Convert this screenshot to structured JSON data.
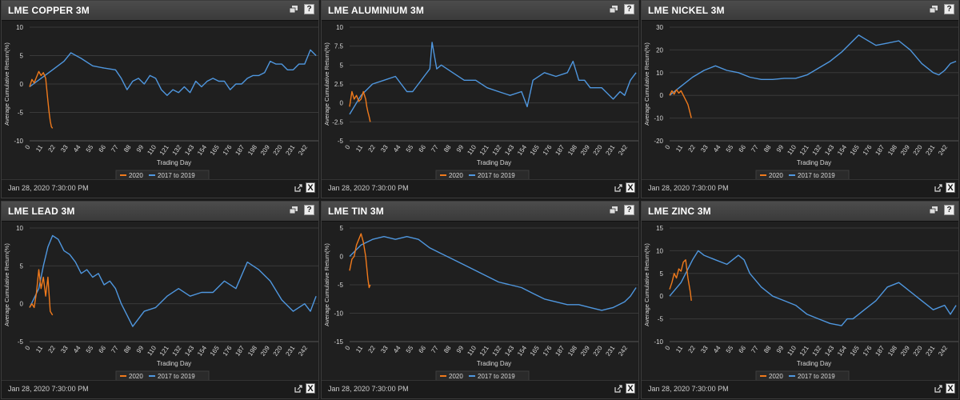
{
  "timestamp": "Jan 28, 2020 7:30:00 PM",
  "help_label": "?",
  "excel_label": "X",
  "colors": {
    "series2020": "#f07a1c",
    "series2017": "#4f97df",
    "grid": "#3a3a3a",
    "text": "#d8d8d8"
  },
  "chart_data": [
    {
      "type": "line",
      "title": "LME COPPER 3M",
      "xlabel": "Trading Day",
      "ylabel": "Average Cumulative Return(%)",
      "ylim": [
        -10,
        10
      ],
      "yticks": [
        -10,
        -5,
        0,
        5,
        10
      ],
      "xticks": [
        0,
        11,
        22,
        33,
        44,
        55,
        66,
        77,
        88,
        99,
        110,
        121,
        132,
        143,
        154,
        165,
        176,
        187,
        198,
        209,
        220,
        231,
        242
      ],
      "series": [
        {
          "name": "2020",
          "x": [
            0,
            2,
            4,
            6,
            8,
            10,
            12,
            14,
            15,
            16,
            17,
            18,
            19,
            20
          ],
          "y": [
            -0.5,
            0.8,
            0.2,
            1.2,
            2.2,
            1.5,
            2.0,
            1.0,
            -1.0,
            -3.0,
            -5.0,
            -6.5,
            -7.5,
            -7.8
          ]
        },
        {
          "name": "2017 to 2019",
          "x": [
            0,
            10,
            20,
            30,
            36,
            45,
            55,
            65,
            75,
            80,
            85,
            90,
            95,
            100,
            105,
            110,
            115,
            120,
            125,
            130,
            135,
            140,
            145,
            150,
            155,
            160,
            165,
            170,
            175,
            180,
            185,
            190,
            195,
            200,
            205,
            210,
            215,
            220,
            225,
            230,
            235,
            240,
            245,
            250
          ],
          "y": [
            -0.5,
            1.0,
            2.5,
            4.0,
            5.5,
            4.5,
            3.2,
            2.8,
            2.5,
            1.0,
            -1.0,
            0.5,
            1.0,
            0.0,
            1.5,
            1.0,
            -1.0,
            -2.0,
            -1.0,
            -1.5,
            -0.5,
            -1.5,
            0.5,
            -0.5,
            0.5,
            1.0,
            0.5,
            0.5,
            -1.0,
            0.0,
            0.0,
            1.0,
            1.5,
            1.5,
            2.0,
            4.0,
            3.5,
            3.5,
            2.5,
            2.5,
            3.5,
            3.5,
            6.0,
            5.0
          ]
        }
      ]
    },
    {
      "type": "line",
      "title": "LME ALUMINIUM 3M",
      "xlabel": "Trading Day",
      "ylabel": "Average Cumulative Return(%)",
      "ylim": [
        -5,
        10
      ],
      "yticks": [
        -5,
        -2.5,
        0,
        2.5,
        5,
        7.5,
        10
      ],
      "xticks": [
        0,
        11,
        22,
        33,
        44,
        55,
        66,
        77,
        88,
        99,
        110,
        121,
        132,
        143,
        154,
        165,
        176,
        187,
        198,
        209,
        220,
        231,
        242
      ],
      "series": [
        {
          "name": "2020",
          "x": [
            0,
            2,
            4,
            6,
            8,
            10,
            12,
            14,
            15,
            16,
            17,
            18
          ],
          "y": [
            -0.5,
            1.5,
            0.5,
            1.0,
            0.2,
            0.5,
            1.5,
            0.5,
            -0.5,
            -1.2,
            -1.8,
            -2.5
          ]
        },
        {
          "name": "2017 to 2019",
          "x": [
            0,
            10,
            20,
            30,
            40,
            50,
            55,
            60,
            65,
            70,
            72,
            76,
            80,
            90,
            100,
            110,
            120,
            130,
            140,
            150,
            155,
            160,
            170,
            180,
            190,
            195,
            200,
            205,
            210,
            220,
            230,
            236,
            240,
            245,
            250
          ],
          "y": [
            -1.5,
            1.0,
            2.5,
            3.0,
            3.5,
            1.5,
            1.5,
            2.5,
            3.5,
            4.5,
            8.0,
            4.5,
            5.0,
            4.0,
            3.0,
            3.0,
            2.0,
            1.5,
            1.0,
            1.5,
            -0.5,
            3.0,
            4.0,
            3.5,
            4.0,
            5.5,
            3.0,
            3.0,
            2.0,
            2.0,
            0.5,
            1.5,
            1.0,
            3.0,
            4.0
          ]
        }
      ]
    },
    {
      "type": "line",
      "title": "LME NICKEL 3M",
      "xlabel": "Trading Day",
      "ylabel": "Average Cumulative Return(%)",
      "ylim": [
        -20,
        30
      ],
      "yticks": [
        -20,
        -10,
        0,
        10,
        20,
        30
      ],
      "xticks": [
        0,
        11,
        22,
        33,
        44,
        55,
        66,
        77,
        88,
        99,
        110,
        121,
        132,
        143,
        154,
        165,
        176,
        187,
        198,
        209,
        220,
        231,
        242
      ],
      "series": [
        {
          "name": "2020",
          "x": [
            0,
            2,
            4,
            6,
            8,
            10,
            12,
            14,
            16,
            18,
            19
          ],
          "y": [
            0.0,
            2.0,
            0.5,
            2.5,
            1.0,
            2.0,
            0.0,
            -2.0,
            -4.0,
            -8.0,
            -10.0
          ]
        },
        {
          "name": "2017 to 2019",
          "x": [
            0,
            10,
            20,
            30,
            40,
            50,
            60,
            70,
            80,
            90,
            100,
            110,
            120,
            130,
            140,
            150,
            160,
            165,
            170,
            180,
            190,
            200,
            210,
            220,
            225,
            230,
            235,
            240,
            245,
            250
          ],
          "y": [
            0.0,
            4.0,
            8.0,
            11.0,
            13.0,
            11.0,
            10.0,
            8.0,
            7.0,
            7.0,
            7.5,
            7.5,
            9.0,
            12.0,
            15.0,
            19.0,
            24.0,
            26.5,
            25.0,
            22.0,
            23.0,
            24.0,
            20.0,
            14.0,
            12.0,
            10.0,
            9.0,
            11.0,
            14.0,
            15.0
          ]
        }
      ]
    },
    {
      "type": "line",
      "title": "LME LEAD 3M",
      "xlabel": "Trading Day",
      "ylabel": "Average Cumulative Return(%)",
      "ylim": [
        -5,
        10
      ],
      "yticks": [
        -5,
        0,
        5,
        10
      ],
      "xticks": [
        0,
        11,
        22,
        33,
        44,
        55,
        66,
        77,
        88,
        99,
        110,
        121,
        132,
        143,
        154,
        165,
        176,
        187,
        198,
        209,
        220,
        231,
        242
      ],
      "series": [
        {
          "name": "2020",
          "x": [
            0,
            2,
            4,
            6,
            8,
            10,
            12,
            14,
            16,
            18,
            20
          ],
          "y": [
            -0.5,
            0.0,
            -0.5,
            1.5,
            4.5,
            2.0,
            3.5,
            1.0,
            3.5,
            -1.0,
            -1.5
          ]
        },
        {
          "name": "2017 to 2019",
          "x": [
            0,
            8,
            12,
            16,
            20,
            25,
            30,
            35,
            40,
            45,
            50,
            55,
            60,
            65,
            70,
            75,
            80,
            85,
            90,
            95,
            100,
            110,
            120,
            130,
            140,
            150,
            160,
            170,
            180,
            190,
            195,
            200,
            210,
            220,
            230,
            240,
            245,
            250
          ],
          "y": [
            -0.5,
            2.0,
            5.0,
            7.5,
            9.0,
            8.5,
            7.0,
            6.5,
            5.5,
            4.0,
            4.5,
            3.5,
            4.0,
            2.5,
            3.0,
            2.0,
            0.0,
            -1.5,
            -3.0,
            -2.0,
            -1.0,
            -0.5,
            1.0,
            2.0,
            1.0,
            1.5,
            1.5,
            3.0,
            2.0,
            5.5,
            5.0,
            4.5,
            3.0,
            0.5,
            -1.0,
            0.0,
            -1.0,
            1.0
          ]
        }
      ]
    },
    {
      "type": "line",
      "title": "LME TIN 3M",
      "xlabel": "Trading Day",
      "ylabel": "Average Cumulative Return(%)",
      "ylim": [
        -15,
        5
      ],
      "yticks": [
        -15,
        -10,
        -5,
        0,
        5
      ],
      "xticks": [
        0,
        11,
        22,
        33,
        44,
        55,
        66,
        77,
        88,
        99,
        110,
        121,
        132,
        143,
        154,
        165,
        176,
        187,
        198,
        209,
        220,
        231,
        242
      ],
      "series": [
        {
          "name": "2020",
          "x": [
            0,
            2,
            4,
            6,
            8,
            10,
            12,
            14,
            15,
            16,
            17,
            18
          ],
          "y": [
            -2.5,
            -0.5,
            0.0,
            2.0,
            3.0,
            4.0,
            2.5,
            0.0,
            -2.0,
            -4.0,
            -5.5,
            -5.0
          ]
        },
        {
          "name": "2017 to 2019",
          "x": [
            0,
            10,
            20,
            30,
            40,
            50,
            60,
            70,
            80,
            90,
            100,
            110,
            120,
            130,
            140,
            150,
            160,
            170,
            180,
            190,
            200,
            210,
            220,
            230,
            240,
            245,
            250
          ],
          "y": [
            0.0,
            2.0,
            3.0,
            3.5,
            3.0,
            3.5,
            3.0,
            1.5,
            0.5,
            -0.5,
            -1.5,
            -2.5,
            -3.5,
            -4.5,
            -5.0,
            -5.5,
            -6.5,
            -7.5,
            -8.0,
            -8.5,
            -8.5,
            -9.0,
            -9.5,
            -9.0,
            -8.0,
            -7.0,
            -5.5
          ]
        }
      ]
    },
    {
      "type": "line",
      "title": "LME ZINC 3M",
      "xlabel": "Trading Day",
      "ylabel": "Average Cumulative Return(%)",
      "ylim": [
        -10,
        15
      ],
      "yticks": [
        -10,
        -5,
        0,
        5,
        10,
        15
      ],
      "xticks": [
        0,
        11,
        22,
        33,
        44,
        55,
        66,
        77,
        88,
        99,
        110,
        121,
        132,
        143,
        154,
        165,
        176,
        187,
        198,
        209,
        220,
        231,
        242
      ],
      "series": [
        {
          "name": "2020",
          "x": [
            0,
            2,
            4,
            6,
            8,
            10,
            12,
            14,
            16,
            18,
            19
          ],
          "y": [
            1.5,
            3.0,
            5.0,
            4.0,
            6.0,
            5.5,
            7.5,
            8.0,
            4.0,
            1.0,
            -1.0
          ]
        },
        {
          "name": "2017 to 2019",
          "x": [
            0,
            10,
            20,
            25,
            30,
            40,
            50,
            60,
            65,
            70,
            80,
            90,
            100,
            110,
            120,
            130,
            140,
            150,
            155,
            160,
            170,
            180,
            190,
            200,
            205,
            210,
            220,
            230,
            240,
            245,
            250
          ],
          "y": [
            0.0,
            3.0,
            8.0,
            10.0,
            9.0,
            8.0,
            7.0,
            9.0,
            8.0,
            5.0,
            2.0,
            0.0,
            -1.0,
            -2.0,
            -4.0,
            -5.0,
            -6.0,
            -6.5,
            -5.0,
            -5.0,
            -3.0,
            -1.0,
            2.0,
            3.0,
            2.0,
            1.0,
            -1.0,
            -3.0,
            -2.0,
            -4.0,
            -2.0
          ]
        }
      ]
    }
  ]
}
